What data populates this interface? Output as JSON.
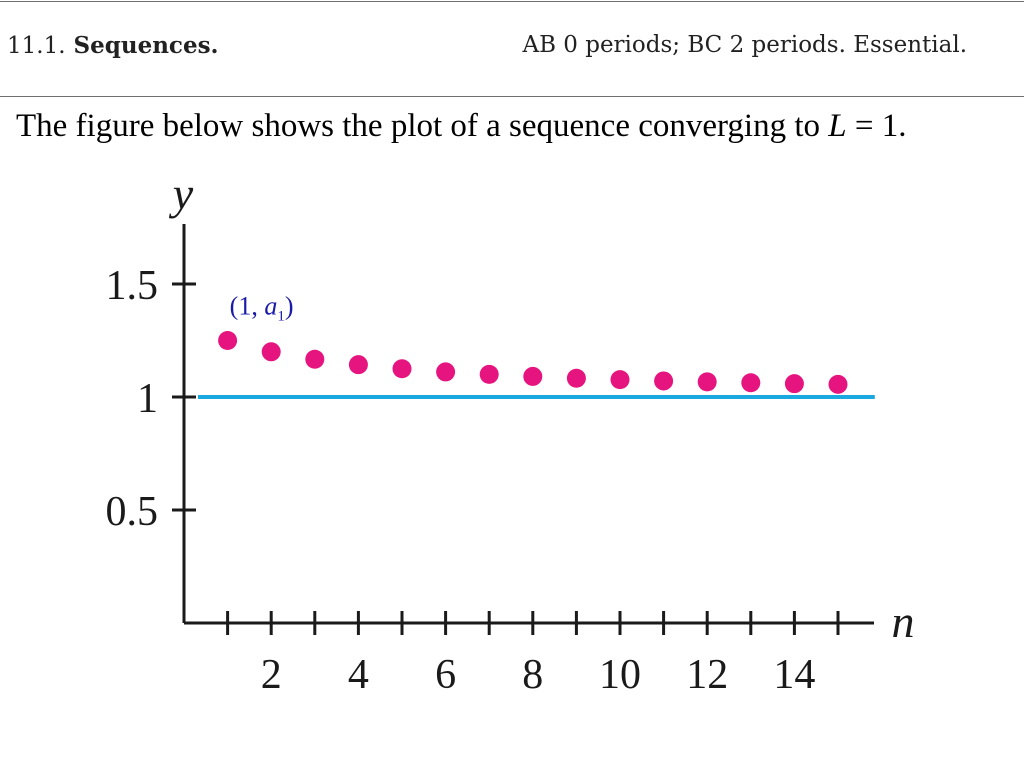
{
  "header": {
    "section_number": "11.1.",
    "section_title": "Sequences.",
    "right_text": "AB 0 periods; BC 2 periods. Essential."
  },
  "intro": {
    "text": "The figure below shows the plot of a sequence converging to ",
    "limit_symbol": "L",
    "limit_rest": " = 1."
  },
  "chart_data": {
    "type": "scatter",
    "title": "",
    "xlabel": "n",
    "ylabel": "y",
    "xlim": [
      0,
      16
    ],
    "ylim": [
      0,
      1.7
    ],
    "x_ticks": [
      1,
      2,
      3,
      4,
      5,
      6,
      7,
      8,
      9,
      10,
      11,
      12,
      13,
      14,
      15
    ],
    "x_tick_labels": [
      {
        "x": 2,
        "label": "2"
      },
      {
        "x": 4,
        "label": "4"
      },
      {
        "x": 6,
        "label": "6"
      },
      {
        "x": 8,
        "label": "8"
      },
      {
        "x": 10,
        "label": "10"
      },
      {
        "x": 12,
        "label": "12"
      },
      {
        "x": 14,
        "label": "14"
      }
    ],
    "y_ticks": [
      {
        "y": 0.5,
        "label": "0.5"
      },
      {
        "y": 1,
        "label": "1"
      },
      {
        "y": 1.5,
        "label": "1.5"
      }
    ],
    "series": [
      {
        "color": "#e6147f",
        "x": [
          1,
          2,
          3,
          4,
          5,
          6,
          7,
          8,
          9,
          10,
          11,
          12,
          13,
          14,
          15
        ],
        "y": [
          1.25,
          1.2,
          1.167,
          1.143,
          1.125,
          1.111,
          1.1,
          1.091,
          1.083,
          1.077,
          1.071,
          1.067,
          1.063,
          1.059,
          1.056
        ]
      }
    ],
    "reference_line": {
      "y": 1,
      "color": "#1aa8e0",
      "x_range": [
        0,
        15.5
      ]
    },
    "annotation": {
      "x": 1,
      "y": 1.25,
      "text": "1, a",
      "subscript": "1",
      "color": "#1a1aa8"
    }
  }
}
